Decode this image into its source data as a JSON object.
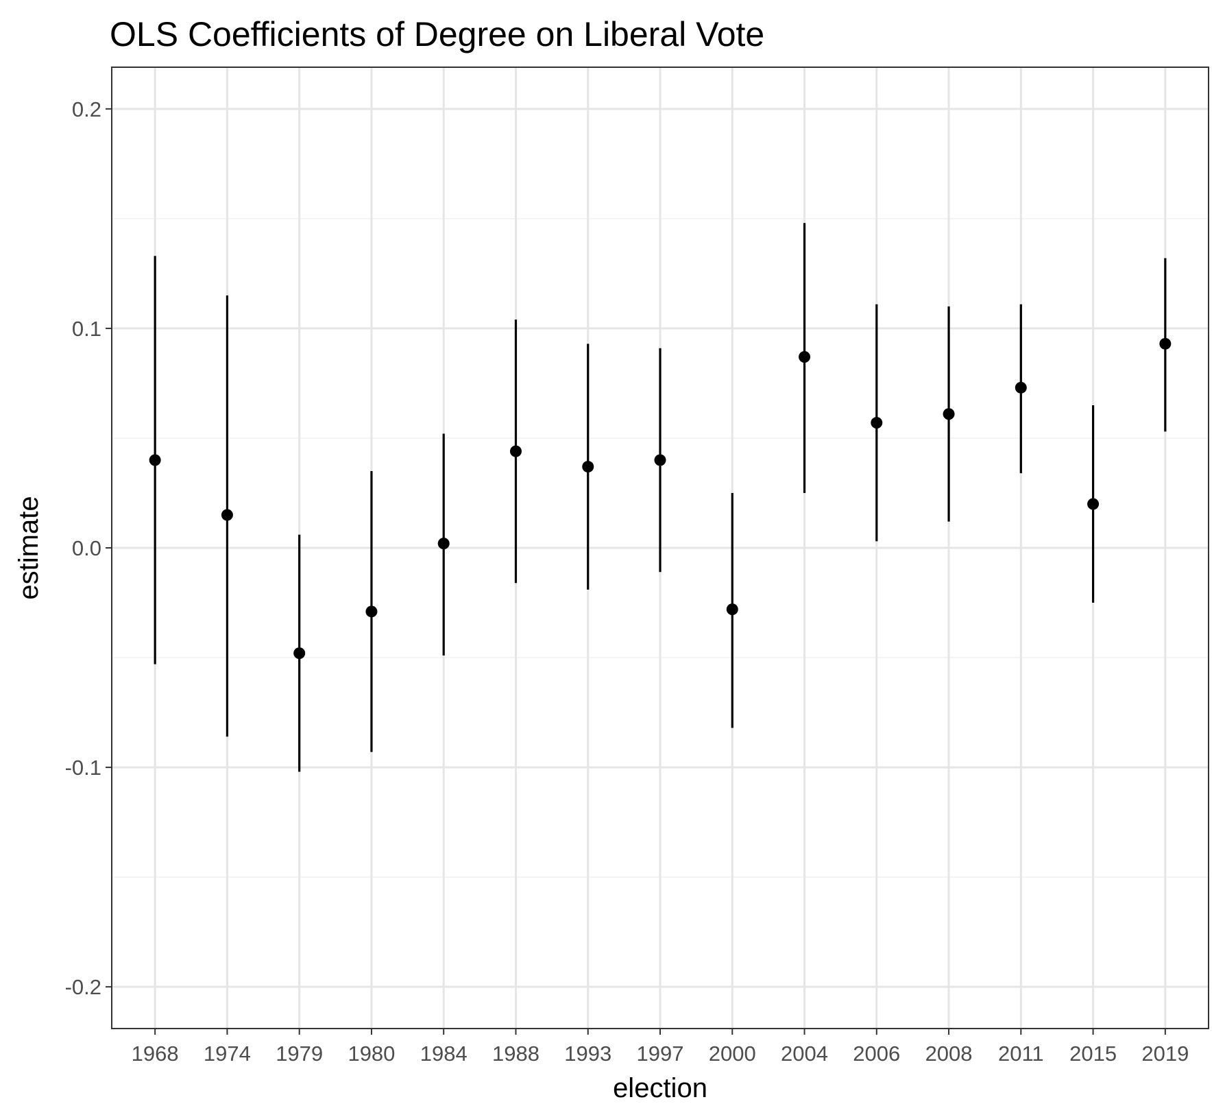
{
  "chart_data": {
    "type": "scatter",
    "subtype": "pointrange",
    "title": "OLS Coefficients of Degree on Liberal Vote",
    "xlabel": "election",
    "ylabel": "estimate",
    "categories": [
      "1968",
      "1974",
      "1979",
      "1980",
      "1984",
      "1988",
      "1993",
      "1997",
      "2000",
      "2004",
      "2006",
      "2008",
      "2011",
      "2015",
      "2019"
    ],
    "series": [
      {
        "estimate": [
          0.04,
          0.015,
          -0.048,
          -0.029,
          0.002,
          0.044,
          0.037,
          0.04,
          -0.028,
          0.087,
          0.057,
          0.061,
          0.073,
          0.02,
          0.093
        ],
        "lower": [
          -0.053,
          -0.086,
          -0.102,
          -0.093,
          -0.049,
          -0.016,
          -0.019,
          -0.011,
          -0.082,
          0.025,
          0.003,
          0.012,
          0.034,
          -0.025,
          0.053
        ],
        "upper": [
          0.133,
          0.115,
          0.006,
          0.035,
          0.052,
          0.104,
          0.093,
          0.091,
          0.025,
          0.148,
          0.111,
          0.11,
          0.111,
          0.065,
          0.132
        ]
      }
    ],
    "ylim": [
      -0.219,
      0.219
    ],
    "yticks": [
      -0.2,
      -0.1,
      0.0,
      0.1,
      0.2
    ],
    "ytick_labels": [
      "-0.2",
      "-0.1",
      "0.0",
      "0.1",
      "0.2"
    ],
    "grid": true,
    "legend": "none",
    "colors": {
      "background": "#ffffff",
      "panel_border": "#333333",
      "grid_major": "#e5e5e5",
      "grid_minor": "#f0f0f0",
      "mark": "#000000",
      "tick_label": "#4d4d4d"
    }
  }
}
